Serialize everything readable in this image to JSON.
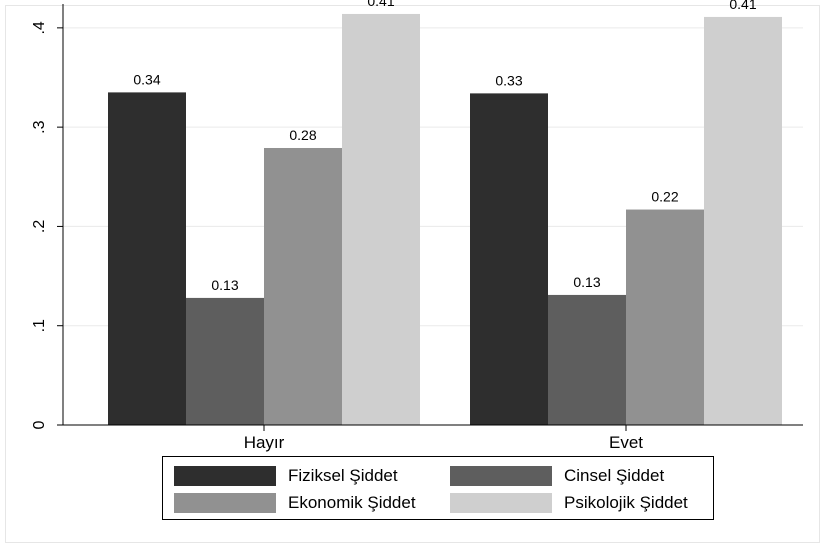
{
  "chart_data": {
    "type": "bar",
    "categories": [
      "Hayır",
      "Evet"
    ],
    "series": [
      {
        "name": "Fiziksel Şiddet",
        "values": [
          0.335,
          0.334
        ],
        "labels": [
          "0.34",
          "0.33"
        ],
        "color": "#2e2e2e"
      },
      {
        "name": "Cinsel Şiddet",
        "values": [
          0.128,
          0.131
        ],
        "labels": [
          "0.13",
          "0.13"
        ],
        "color": "#5e5e5e"
      },
      {
        "name": "Ekonomik Şiddet",
        "values": [
          0.279,
          0.217
        ],
        "labels": [
          "0.28",
          "0.22"
        ],
        "color": "#919191"
      },
      {
        "name": "Psikolojik Şiddet",
        "values": [
          0.414,
          0.411
        ],
        "labels": [
          "0.41",
          "0.41"
        ],
        "color": "#cfcfcf"
      }
    ],
    "yticks": [
      0,
      0.1,
      0.2,
      0.3,
      0.4
    ],
    "ytick_labels": [
      "0",
      ".1",
      ".2",
      ".3",
      ".4"
    ],
    "ylim": [
      0,
      0.42
    ],
    "grid": true,
    "legend_position": "bottom"
  }
}
